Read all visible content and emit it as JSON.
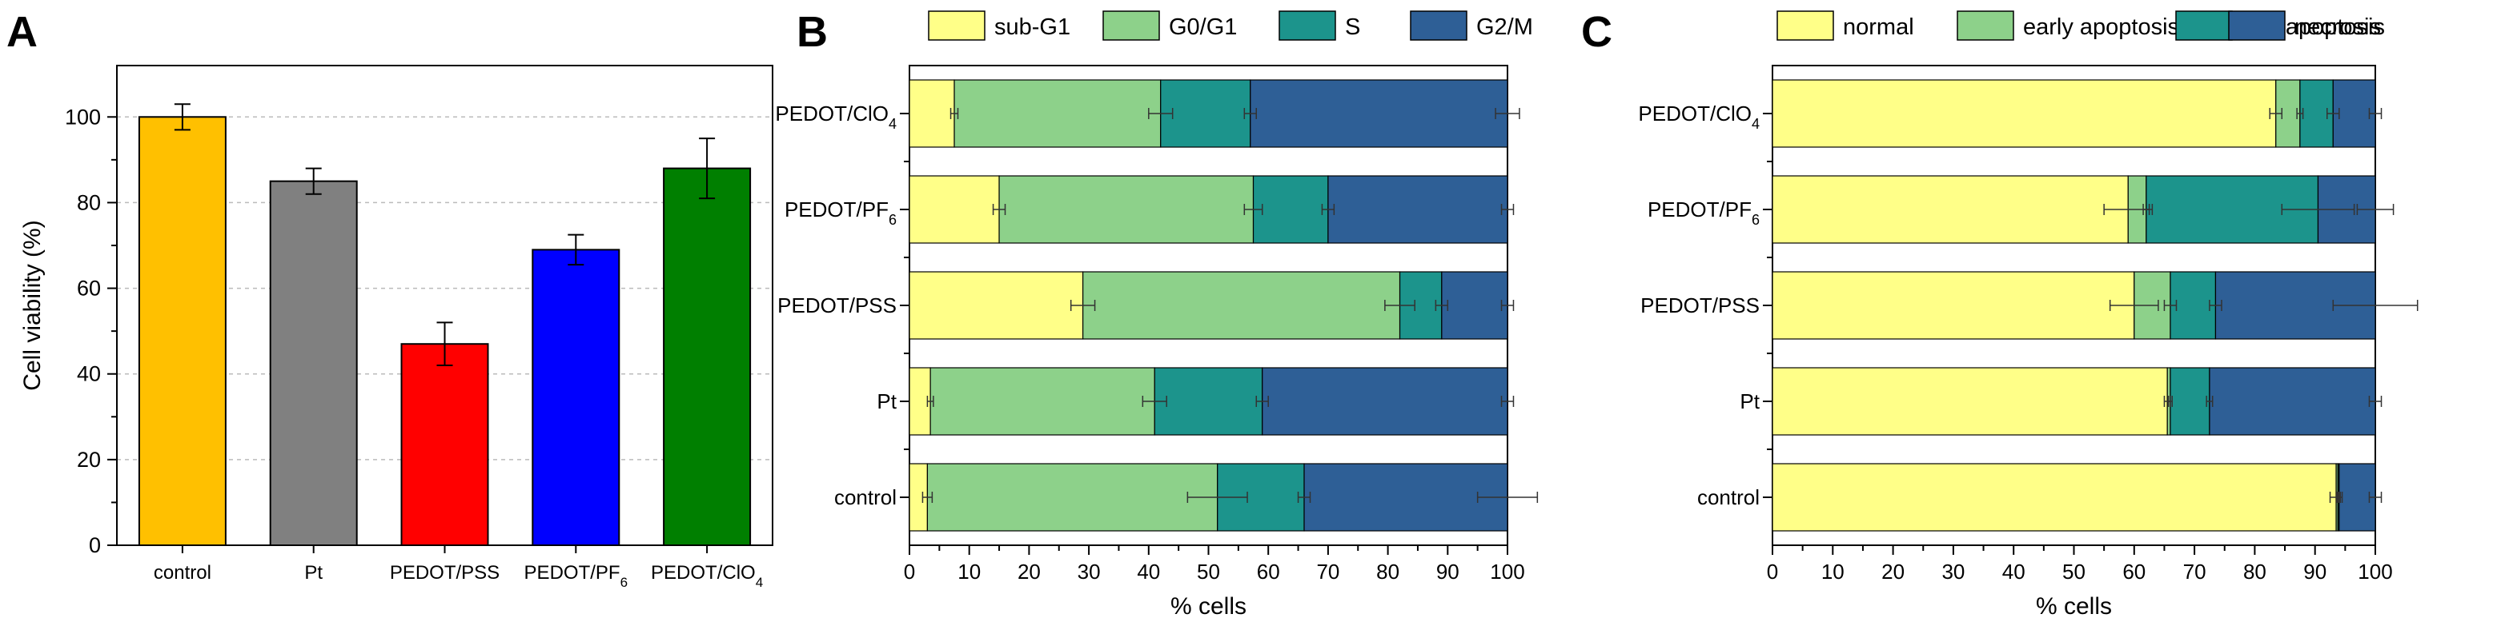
{
  "figure": {
    "colors": {
      "control": "#FFC000",
      "Pt": "#808080",
      "PEDOT/PSS": "#FF0000",
      "PEDOT/PF6": "#0000FF",
      "PEDOT/ClO4": "#007F00",
      "sub-G1": "#FFFF88",
      "G0/G1": "#8DD18A",
      "S": "#1C948C",
      "G2/M": "#2E5F96",
      "normal": "#FFFF88",
      "early apoptosis": "#8DD18A",
      "late apoptosis": "#1C948C",
      "necrosis": "#2E5F96"
    }
  },
  "chart_data": [
    {
      "panel": "A",
      "type": "bar",
      "categories": [
        "control",
        "Pt",
        "PEDOT/PSS",
        "PEDOT/PF6",
        "PEDOT/ClO4"
      ],
      "category_labels": [
        {
          "main": "control",
          "sub": ""
        },
        {
          "main": "Pt",
          "sub": ""
        },
        {
          "main": "PEDOT/PSS",
          "sub": ""
        },
        {
          "main": "PEDOT/PF",
          "sub": "6"
        },
        {
          "main": "PEDOT/ClO",
          "sub": "4"
        }
      ],
      "values": [
        100,
        85,
        47,
        69,
        88
      ],
      "errors": [
        3,
        3,
        5,
        3.5,
        7
      ],
      "ylabel": "Cell viability (%)",
      "xlabel": "",
      "ylim": [
        0,
        112
      ],
      "yticks": [
        0,
        20,
        40,
        60,
        80,
        100
      ],
      "grid": "horizontal dashed"
    },
    {
      "panel": "B",
      "type": "bar",
      "orientation": "horizontal",
      "stacked": true,
      "categories": [
        "PEDOT/ClO4",
        "PEDOT/PF6",
        "PEDOT/PSS",
        "Pt",
        "control"
      ],
      "category_labels": [
        {
          "main": "PEDOT/ClO",
          "sub": "4"
        },
        {
          "main": "PEDOT/PF",
          "sub": "6"
        },
        {
          "main": "PEDOT/PSS",
          "sub": ""
        },
        {
          "main": "Pt",
          "sub": ""
        },
        {
          "main": "control",
          "sub": ""
        }
      ],
      "series": [
        {
          "name": "sub-G1",
          "values": [
            7.5,
            15,
            29,
            3.5,
            3
          ],
          "errors": [
            0.6,
            1,
            2,
            0.5,
            0.8
          ]
        },
        {
          "name": "G0/G1",
          "values": [
            34.5,
            42.5,
            53,
            37.5,
            48.5
          ],
          "errors": [
            2,
            1.5,
            2.5,
            2,
            5
          ]
        },
        {
          "name": "S",
          "values": [
            15,
            12.5,
            7,
            18,
            14.5
          ],
          "errors": [
            1,
            1,
            1,
            1,
            1
          ]
        },
        {
          "name": "G2/M",
          "values": [
            43,
            30,
            11,
            41,
            34
          ],
          "errors": [
            2,
            1,
            1,
            1,
            5
          ]
        }
      ],
      "xlabel": "% cells",
      "ylabel": "",
      "xlim": [
        0,
        100
      ],
      "xticks": [
        0,
        10,
        20,
        30,
        40,
        50,
        60,
        70,
        80,
        90,
        100
      ],
      "legend": "top"
    },
    {
      "panel": "C",
      "type": "bar",
      "orientation": "horizontal",
      "stacked": true,
      "categories": [
        "PEDOT/ClO4",
        "PEDOT/PF6",
        "PEDOT/PSS",
        "Pt",
        "control"
      ],
      "category_labels": [
        {
          "main": "PEDOT/ClO",
          "sub": "4"
        },
        {
          "main": "PEDOT/PF",
          "sub": "6"
        },
        {
          "main": "PEDOT/PSS",
          "sub": ""
        },
        {
          "main": "Pt",
          "sub": ""
        },
        {
          "main": "control",
          "sub": ""
        }
      ],
      "series": [
        {
          "name": "normal",
          "values": [
            83.5,
            59,
            60,
            65.5,
            93.5
          ],
          "errors": [
            1,
            4,
            4,
            0.5,
            1
          ]
        },
        {
          "name": "early apoptosis",
          "values": [
            4,
            3,
            6,
            0.5,
            0.3
          ],
          "errors": [
            0.5,
            0.5,
            1,
            0.3,
            0.2
          ]
        },
        {
          "name": "late apoptosis",
          "values": [
            5.5,
            28.5,
            7.5,
            6.5,
            0.2
          ],
          "errors": [
            1,
            6,
            1,
            0.5,
            0.2
          ]
        },
        {
          "name": "necrosis",
          "values": [
            7,
            9.5,
            26.5,
            27.5,
            6
          ],
          "errors": [
            1,
            3,
            7,
            1,
            1
          ]
        }
      ],
      "xlabel": "% cells",
      "ylabel": "",
      "xlim": [
        0,
        100
      ],
      "xticks": [
        0,
        10,
        20,
        30,
        40,
        50,
        60,
        70,
        80,
        90,
        100
      ],
      "legend": "top"
    }
  ],
  "panels": [
    {
      "letter": "A"
    },
    {
      "letter": "B"
    },
    {
      "letter": "C"
    }
  ]
}
